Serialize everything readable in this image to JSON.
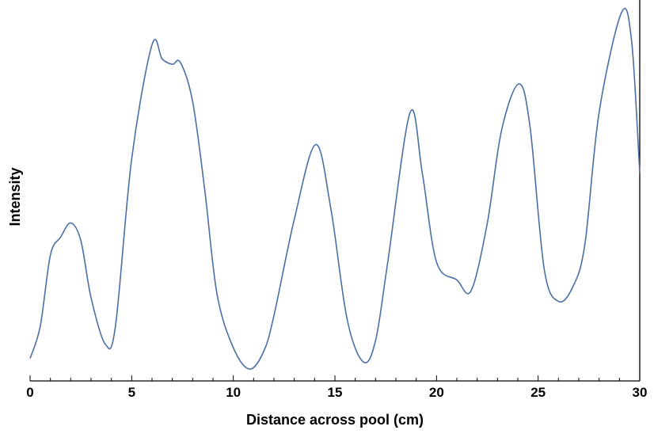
{
  "chart_data": {
    "type": "line",
    "title": "",
    "xlabel": "Distance across pool (cm)",
    "ylabel": "Intensity",
    "xlim": [
      0,
      30
    ],
    "ylim": [
      0,
      1
    ],
    "xticks_major": [
      0,
      5,
      10,
      15,
      20,
      25,
      30
    ],
    "xtick_labels": [
      "0",
      "5",
      "10",
      "15",
      "20",
      "25",
      "30"
    ],
    "yticks_shown": false,
    "grid": false,
    "legend": "none",
    "line_color": "#4a6fa5",
    "series": [
      {
        "x": [
          0,
          0.5,
          1.0,
          1.5,
          2.0,
          2.5,
          3.0,
          3.7,
          4.2,
          5.0,
          6.0,
          6.5,
          7.0,
          7.4,
          8.0,
          8.6,
          9.2,
          10.0,
          10.8,
          11.5,
          12.0,
          13.0,
          14.05,
          14.8,
          15.6,
          16.4,
          17.0,
          17.6,
          18.7,
          19.3,
          20.0,
          21.0,
          21.7,
          22.5,
          23.2,
          24.05,
          24.6,
          25.3,
          26.0,
          26.7,
          27.3,
          28.0,
          29.1,
          29.6,
          30.0
        ],
        "y": [
          0.03,
          0.12,
          0.32,
          0.37,
          0.41,
          0.36,
          0.2,
          0.07,
          0.12,
          0.59,
          0.91,
          0.87,
          0.855,
          0.86,
          0.75,
          0.5,
          0.21,
          0.06,
          0.0,
          0.05,
          0.15,
          0.42,
          0.63,
          0.45,
          0.14,
          0.02,
          0.08,
          0.3,
          0.72,
          0.55,
          0.3,
          0.25,
          0.22,
          0.41,
          0.67,
          0.8,
          0.68,
          0.28,
          0.19,
          0.23,
          0.35,
          0.72,
          1.0,
          0.92,
          0.55
        ]
      }
    ]
  }
}
